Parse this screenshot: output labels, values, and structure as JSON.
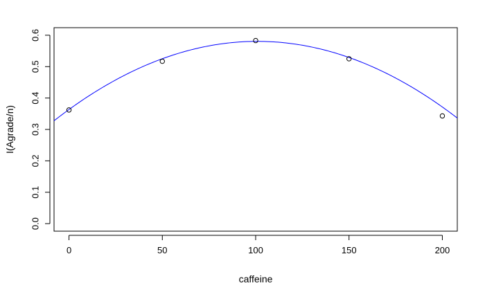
{
  "chart_data": {
    "type": "scatter",
    "xlabel": "caffeine",
    "ylabel": "I(Agrade/n)",
    "xlim": [
      -8,
      208
    ],
    "ylim": [
      -0.024,
      0.624
    ],
    "x_ticks": [
      0,
      50,
      100,
      150,
      200
    ],
    "x_tick_labels": [
      "0",
      "50",
      "100",
      "150",
      "200"
    ],
    "y_ticks": [
      0.0,
      0.1,
      0.2,
      0.3,
      0.4,
      0.5,
      0.6
    ],
    "y_tick_labels": [
      "0.0",
      "0.1",
      "0.2",
      "0.3",
      "0.4",
      "0.5",
      "0.6"
    ],
    "points": {
      "x": [
        0,
        50,
        100,
        150,
        200
      ],
      "y": [
        0.362,
        0.517,
        0.583,
        0.525,
        0.343
      ]
    },
    "fitted_curve": {
      "type": "quadratic",
      "coefficients": [
        0.3634,
        0.0043,
        -2.13e-05
      ],
      "color": "#0000ff"
    },
    "point_color": "#000000",
    "grid": false
  }
}
